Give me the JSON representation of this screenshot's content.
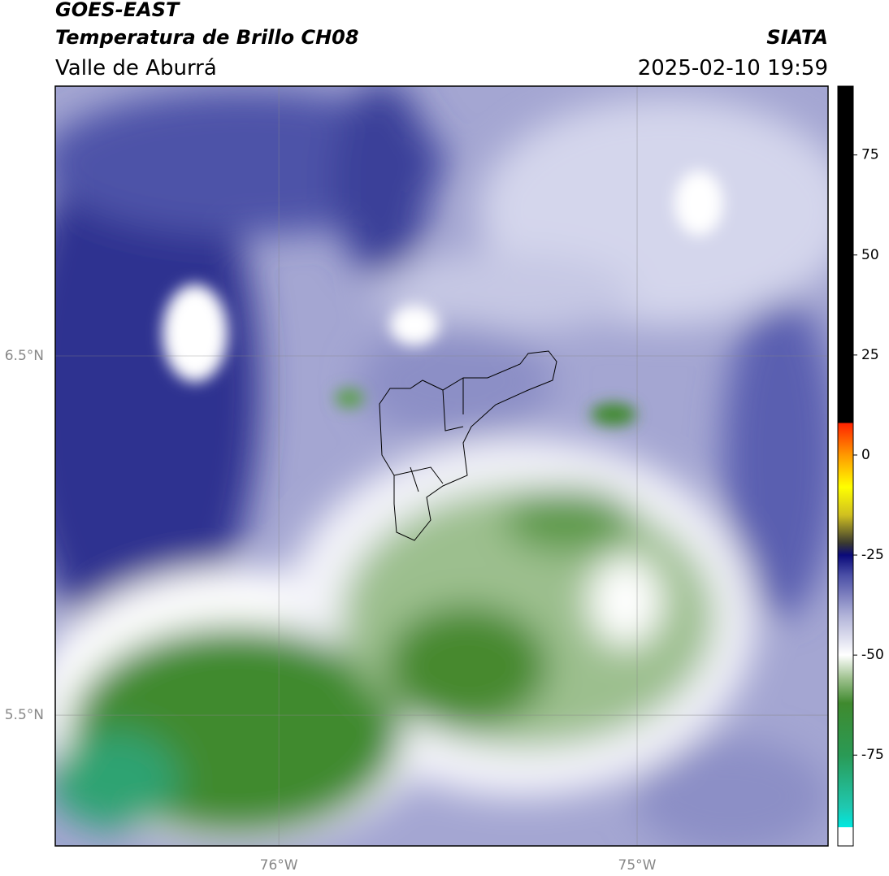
{
  "header": {
    "title": "GOES-EAST",
    "subtitle": "Temperatura de Brillo CH08",
    "region": "Valle de Aburrá",
    "source": "SIATA",
    "datetime": "2025-02-10 19:59"
  },
  "map": {
    "lonlim": [
      -76.624,
      -74.467
    ],
    "latlim": [
      5.136,
      7.251
    ],
    "lonticks": [
      {
        "value": -76,
        "label": "76°W"
      },
      {
        "value": -75,
        "label": "75°W"
      }
    ],
    "latticks": [
      {
        "value": 6.5,
        "label": "6.5°N"
      },
      {
        "value": 5.5,
        "label": "5.5°N"
      }
    ],
    "grid": true,
    "colorbar": {
      "lim": [
        -97.7,
        92.2
      ],
      "ticks": [
        75,
        50,
        25,
        0,
        -25,
        -50,
        -75
      ],
      "stops": [
        [
          -97.7,
          "#ffffff"
        ],
        [
          -93,
          "#ffffff"
        ],
        [
          -93,
          "#00e8e0"
        ],
        [
          -88,
          "#1fc8b0"
        ],
        [
          -75,
          "#2a9a55"
        ],
        [
          -62,
          "#3f8a2e"
        ],
        [
          -56,
          "#9cc08c"
        ],
        [
          -50,
          "#ffffff"
        ],
        [
          -40,
          "#b0b2d8"
        ],
        [
          -30,
          "#4a4ea6"
        ],
        [
          -25,
          "#0a0a7a"
        ],
        [
          -22,
          "#3a3a30"
        ],
        [
          -15,
          "#d0c020"
        ],
        [
          -8,
          "#ffff00"
        ],
        [
          0,
          "#ff9900"
        ],
        [
          8,
          "#ff2200"
        ],
        [
          8,
          "#000000"
        ],
        [
          92.2,
          "#000000"
        ]
      ]
    }
  }
}
